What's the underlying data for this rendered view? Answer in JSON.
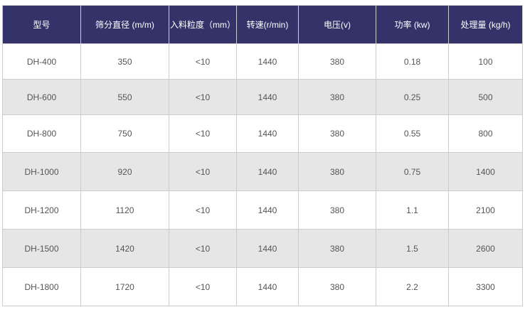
{
  "table": {
    "headers": [
      "型号",
      "筛分直径 (m/m)",
      "入料粒度（mm）",
      "转速(r/min)",
      "电压(v)",
      "功率 (kw)",
      "处理量 (kg/h)"
    ],
    "rows": [
      [
        "DH-400",
        "350",
        "<10",
        "1440",
        "380",
        "0.18",
        "100"
      ],
      [
        "DH-600",
        "550",
        "<10",
        "1440",
        "380",
        "0.25",
        "500"
      ],
      [
        "DH-800",
        "750",
        "<10",
        "1440",
        "380",
        "0.55",
        "800"
      ],
      [
        "DH-1000",
        "920",
        "<10",
        "1440",
        "380",
        "0.75",
        "1400"
      ],
      [
        "DH-1200",
        "1120",
        "<10",
        "1440",
        "380",
        "1.1",
        "2100"
      ],
      [
        "DH-1500",
        "1420",
        "<10",
        "1440",
        "380",
        "1.5",
        "2600"
      ],
      [
        "DH-1800",
        "1720",
        "<10",
        "1440",
        "380",
        "2.2",
        "3300"
      ]
    ]
  },
  "colors": {
    "header_bg": "#33336a",
    "alt_row_bg": "#e6e6e6"
  }
}
